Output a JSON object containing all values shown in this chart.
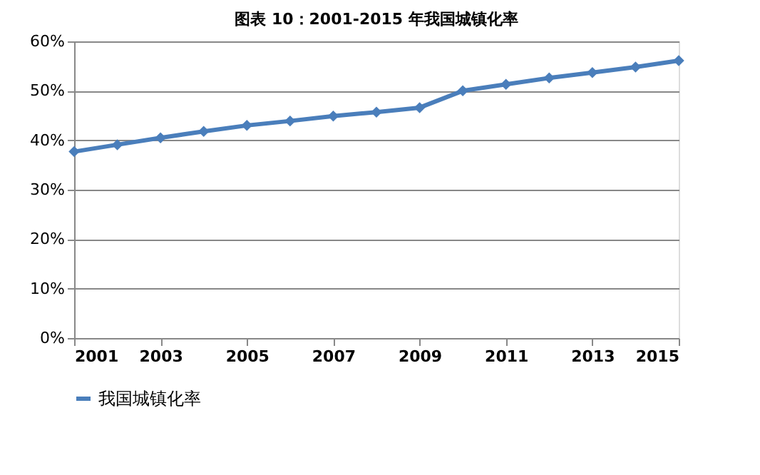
{
  "chart_data": {
    "type": "line",
    "title": "图表 10：2001-2015 年我国城镇化率",
    "x": [
      2001,
      2002,
      2003,
      2004,
      2005,
      2006,
      2007,
      2008,
      2009,
      2010,
      2011,
      2012,
      2013,
      2014,
      2015
    ],
    "series": [
      {
        "name": "我国城镇化率",
        "color": "#4a7ebb",
        "values": [
          37.7,
          39.1,
          40.5,
          41.8,
          43.0,
          43.9,
          44.9,
          45.7,
          46.6,
          50.0,
          51.3,
          52.6,
          53.7,
          54.8,
          56.1
        ]
      }
    ],
    "xlim": [
      2001,
      2015
    ],
    "xticks": [
      2001,
      2003,
      2005,
      2007,
      2009,
      2011,
      2013,
      2015
    ],
    "ylim": [
      0,
      60
    ],
    "yticks": [
      {
        "value": 0,
        "label": "0%"
      },
      {
        "value": 10,
        "label": "10%"
      },
      {
        "value": 20,
        "label": "20%"
      },
      {
        "value": 30,
        "label": "30%"
      },
      {
        "value": 40,
        "label": "40%"
      },
      {
        "value": 50,
        "label": "50%"
      },
      {
        "value": 60,
        "label": "60%"
      }
    ],
    "grid": "y",
    "legend": "bottom",
    "marker": "diamond",
    "line_style": "solid"
  }
}
